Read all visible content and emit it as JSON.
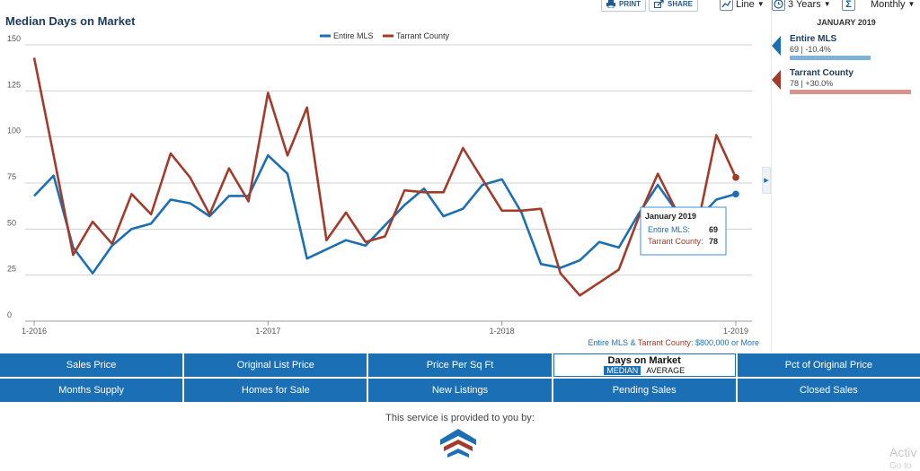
{
  "toolbar": {
    "print_label": "PRINT",
    "share_label": "SHARE",
    "chart_type": "Line",
    "period": "3 Years",
    "interval": "Monthly"
  },
  "colors": {
    "entire": "#1a6fb5",
    "county": "#a33b2a",
    "nav": "#1a6fb5"
  },
  "chart_data": {
    "type": "line",
    "title": "Median Days on Market",
    "xlabel": "",
    "ylabel": "",
    "ylim": [
      0,
      150
    ],
    "yticks": [
      0,
      25,
      50,
      75,
      100,
      125,
      150
    ],
    "xtick_labels": [
      "1-2016",
      "1-2017",
      "1-2018",
      "1-2019"
    ],
    "x": [
      "2016-01",
      "2016-02",
      "2016-03",
      "2016-04",
      "2016-05",
      "2016-06",
      "2016-07",
      "2016-08",
      "2016-09",
      "2016-10",
      "2016-11",
      "2016-12",
      "2017-01",
      "2017-02",
      "2017-03",
      "2017-04",
      "2017-05",
      "2017-06",
      "2017-07",
      "2017-08",
      "2017-09",
      "2017-10",
      "2017-11",
      "2017-12",
      "2018-01",
      "2018-02",
      "2018-03",
      "2018-04",
      "2018-05",
      "2018-06",
      "2018-07",
      "2018-08",
      "2018-09",
      "2018-10",
      "2018-11",
      "2018-12",
      "2019-01"
    ],
    "series": [
      {
        "name": "Entire MLS",
        "values": [
          68,
          79,
          40,
          26,
          41,
          50,
          53,
          66,
          64,
          57,
          68,
          68,
          90,
          80,
          34,
          39,
          44,
          41,
          52,
          63,
          72,
          57,
          61,
          74,
          77,
          59,
          31,
          29,
          33,
          43,
          40,
          58,
          74,
          59,
          55,
          66,
          69
        ]
      },
      {
        "name": "Tarrant County",
        "values": [
          143,
          90,
          36,
          54,
          42,
          69,
          58,
          91,
          78,
          58,
          83,
          65,
          124,
          90,
          116,
          44,
          59,
          43,
          46,
          71,
          70,
          70,
          94,
          77,
          60,
          60,
          61,
          26,
          14,
          21,
          28,
          56,
          80,
          59,
          50,
          101,
          78
        ]
      }
    ],
    "legend": "top-center",
    "grid": true,
    "footnote_parts": [
      "Entire MLS",
      " & ",
      "Tarrant County",
      ": $800,000 or More"
    ],
    "tooltip": {
      "title": "January 2019",
      "rows": [
        {
          "label": "Entire MLS:",
          "value": "69"
        },
        {
          "label": "Tarrant County:",
          "value": "78"
        }
      ]
    }
  },
  "side_panel": {
    "date": "JANUARY 2019",
    "entries": [
      {
        "name": "Entire MLS",
        "stat": "69 | -10.4%",
        "bar_fraction": 0.6
      },
      {
        "name": "Tarrant County",
        "stat": "78 | +30.0%",
        "bar_fraction": 0.9
      }
    ]
  },
  "nav": {
    "row1": [
      "Sales Price",
      "Original List Price",
      "Price Per Sq Ft",
      "Days on Market",
      "Pct of Original Price"
    ],
    "row2": [
      "Months Supply",
      "Homes for Sale",
      "New Listings",
      "Pending Sales",
      "Closed Sales"
    ],
    "active_options": [
      "MEDIAN",
      "AVERAGE"
    ]
  },
  "footer": {
    "provided_by": "This service is provided to you by:"
  },
  "watermark": {
    "line1": "Activ",
    "line2": "Go to"
  }
}
